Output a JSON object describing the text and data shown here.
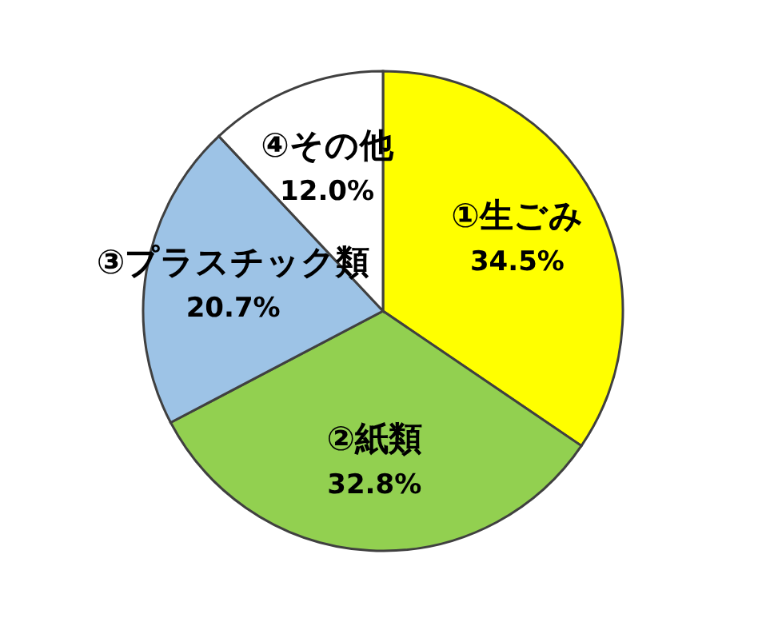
{
  "chart_data": {
    "type": "pie",
    "categories": [
      "①生ごみ",
      "②紙類",
      "③プラスチック類",
      "④その他"
    ],
    "values": [
      34.5,
      32.8,
      20.7,
      12.0
    ],
    "colors": [
      "#ffff00",
      "#92d050",
      "#9dc3e6",
      "#ffffff"
    ],
    "value_labels": [
      "34.5%",
      "32.8%",
      "20.7%",
      "12.0%"
    ]
  }
}
